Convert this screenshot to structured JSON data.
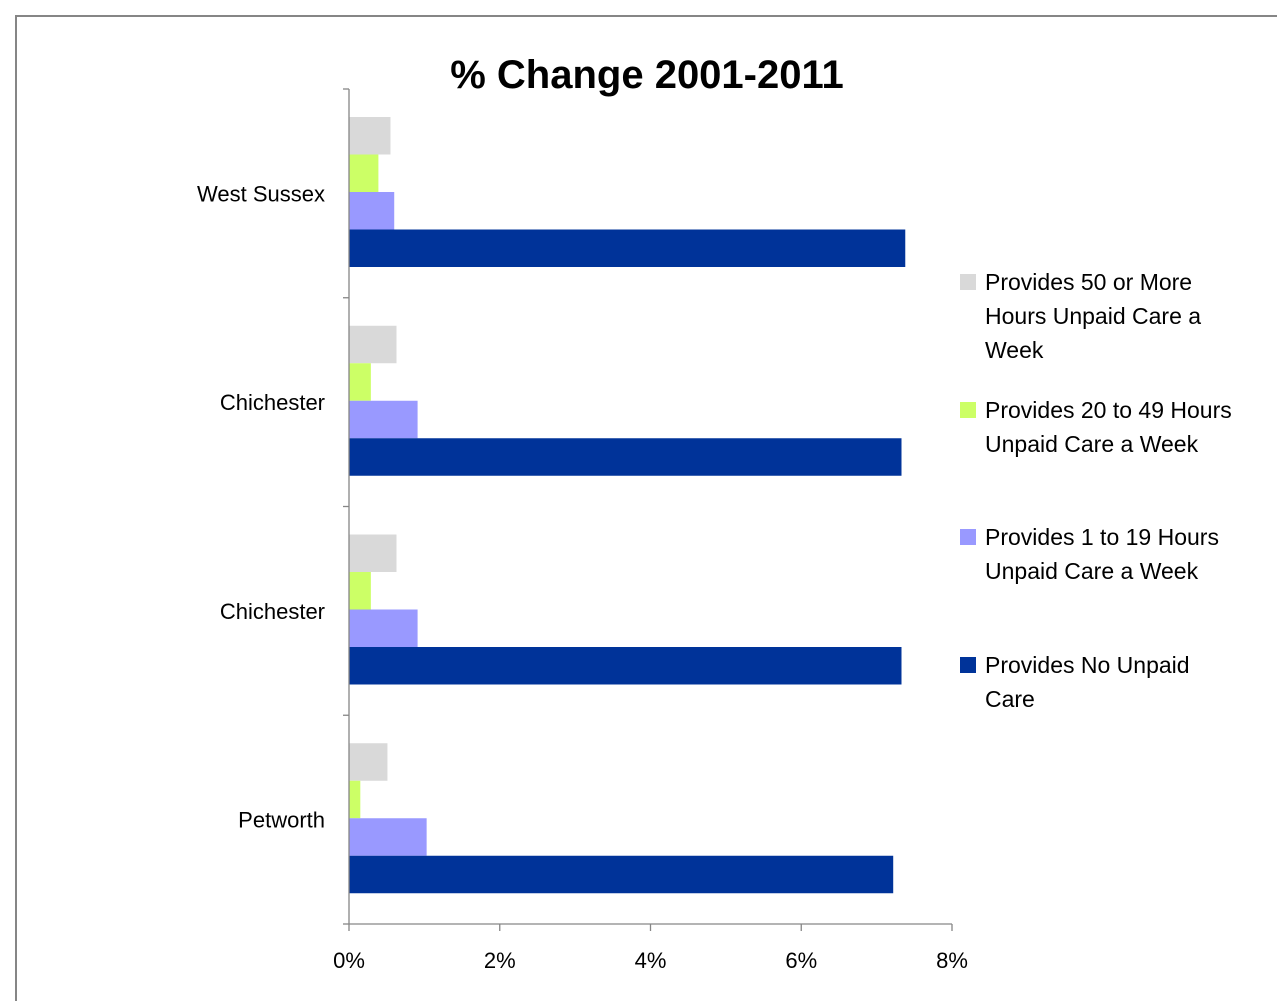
{
  "chart_data": {
    "type": "bar",
    "orientation": "horizontal",
    "title": "% Change 2001-2011",
    "xlabel": "",
    "ylabel": "",
    "xlim": [
      0,
      8
    ],
    "x_ticks": [
      0,
      2,
      4,
      6,
      8
    ],
    "x_tick_labels": [
      "0%",
      "2%",
      "4%",
      "6%",
      "8%"
    ],
    "grid": false,
    "legend_position": "right",
    "categories": [
      "West Sussex",
      "Chichester",
      "Chichester",
      "Petworth"
    ],
    "series": [
      {
        "name": "Provides 50 or More Hours Unpaid Care a Week",
        "color": "#d9d9d9",
        "values": [
          0.55,
          0.63,
          0.63,
          0.51
        ]
      },
      {
        "name": "Provides 20 to 49 Hours Unpaid Care a Week",
        "color": "#ccff66",
        "values": [
          0.39,
          0.29,
          0.29,
          0.15
        ]
      },
      {
        "name": "Provides 1 to 19 Hours Unpaid Care a Week",
        "color": "#9999ff",
        "values": [
          0.6,
          0.91,
          0.91,
          1.03
        ]
      },
      {
        "name": "Provides No Unpaid Care",
        "color": "#003399",
        "values": [
          7.38,
          7.33,
          7.33,
          7.22
        ]
      }
    ],
    "legend_lines": [
      [
        "Provides 50 or More",
        "Hours Unpaid Care a",
        "Week"
      ],
      [
        "Provides 20 to 49 Hours",
        "Unpaid Care a Week"
      ],
      [
        "Provides 1 to 19 Hours",
        "Unpaid Care a Week"
      ],
      [
        "Provides No Unpaid",
        "Care"
      ]
    ]
  }
}
